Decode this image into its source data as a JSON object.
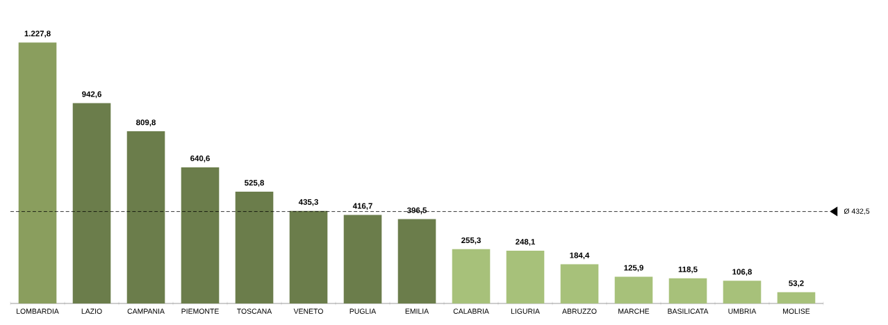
{
  "chart_data": {
    "type": "bar",
    "categories": [
      "LOMBARDIA",
      "LAZIO",
      "CAMPANIA",
      "PIEMONTE",
      "TOSCANA",
      "VENETO",
      "PUGLIA",
      "EMILIA",
      "CALABRIA",
      "LIGURIA",
      "ABRUZZO",
      "MARCHE",
      "BASILICATA",
      "UMBRIA",
      "MOLISE"
    ],
    "values": [
      1227.8,
      942.6,
      809.8,
      640.6,
      525.8,
      435.3,
      416.7,
      396.5,
      255.3,
      248.1,
      184.4,
      125.9,
      118.5,
      106.8,
      53.2
    ],
    "value_labels": [
      "1.227,8",
      "942,6",
      "809,8",
      "640,6",
      "525,8",
      "435,3",
      "416,7",
      "396,5",
      "255,3",
      "248,1",
      "184,4",
      "125,9",
      "118,5",
      "106,8",
      "53,2"
    ],
    "colors": [
      "#8a9e5e",
      "#6b7d4b",
      "#6b7d4b",
      "#6b7d4b",
      "#6b7d4b",
      "#6b7d4b",
      "#6b7d4b",
      "#6b7d4b",
      "#a7c17a",
      "#a7c17a",
      "#a7c17a",
      "#a7c17a",
      "#a7c17a",
      "#a7c17a",
      "#a7c17a"
    ],
    "ref_lines": [
      {
        "axis": "y",
        "value": 432.5,
        "label": "Ø 432,5",
        "color": "#000000",
        "line_style": "dashed"
      }
    ]
  }
}
